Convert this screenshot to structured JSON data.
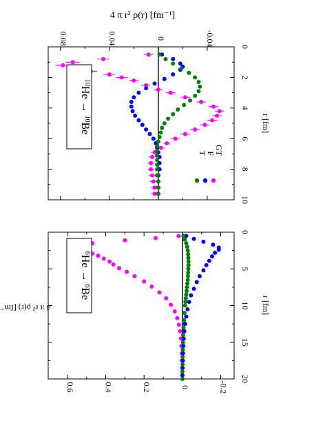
{
  "chart_data": [
    {
      "type": "scatter",
      "panel": "left",
      "orientation": "rotated-90-clockwise",
      "title": "",
      "xlabel": "r [fm]",
      "ylabel": "4 π r² ρ(r) [fm⁻¹]",
      "annotation": {
        "parent": "He",
        "parent_mass": "6",
        "arrow": "→",
        "daughter": "Be",
        "daughter_mass": "6"
      },
      "xlim": [
        0,
        20
      ],
      "ylim": [
        -0.27,
        0.7
      ],
      "x_ticks": [
        0,
        5,
        10,
        15,
        20
      ],
      "y_ticks": [
        -0.2,
        0,
        0.2,
        0.4,
        0.6
      ],
      "y_tick_labels": [
        "-0.2",
        "0",
        "0.2",
        "0.4",
        "0.6"
      ],
      "grid": false,
      "legend": "none",
      "zero_line": true,
      "series": [
        {
          "color": "#ff00ff",
          "symbol": "filled-circle",
          "x": [
            0.5,
            0.8,
            1.1,
            1.5,
            1.9,
            2.2,
            2.5,
            2.9,
            3.2,
            3.6,
            4.0,
            4.4,
            4.9,
            5.4,
            6.0,
            6.7,
            7.4,
            8.2,
            9.0,
            9.9,
            10.8,
            11.7,
            12.6,
            13.5,
            14.5,
            15.5,
            16.5,
            17.5,
            18.5,
            19.5
          ],
          "y": [
            0.02,
            0.14,
            0.3,
            0.47,
            0.57,
            0.56,
            0.52,
            0.47,
            0.44,
            0.41,
            0.38,
            0.36,
            0.33,
            0.29,
            0.25,
            0.2,
            0.16,
            0.12,
            0.085,
            0.06,
            0.04,
            0.027,
            0.018,
            0.012,
            0.008,
            0.005,
            0.003,
            0.002,
            0.001,
            0.0
          ]
        },
        {
          "color": "#0000ff",
          "symbol": "filled-circle",
          "x": [
            0.5,
            0.9,
            1.3,
            1.7,
            2.1,
            2.4,
            2.8,
            3.3,
            3.9,
            4.5,
            5.2,
            6.0,
            6.8,
            7.7,
            8.6,
            9.5,
            10.5,
            11.5,
            12.5,
            13.5,
            14.5,
            15.5,
            16.5,
            17.5,
            18.5,
            19.5
          ],
          "y": [
            -0.02,
            -0.06,
            -0.11,
            -0.16,
            -0.19,
            -0.19,
            -0.17,
            -0.155,
            -0.14,
            -0.125,
            -0.11,
            -0.09,
            -0.075,
            -0.06,
            -0.045,
            -0.035,
            -0.027,
            -0.02,
            -0.014,
            -0.01,
            -0.007,
            -0.005,
            -0.003,
            -0.002,
            -0.001,
            0.0
          ]
        },
        {
          "color": "#008000",
          "symbol": "filled-circle",
          "x": [
            0.5,
            1.0,
            1.5,
            2.0,
            2.5,
            3.0,
            3.5,
            4.0,
            4.5,
            5.0,
            5.5,
            6.0,
            6.5,
            7.0,
            7.5,
            8.0,
            8.5,
            9.0,
            9.5,
            10.0,
            11.0,
            12.0,
            13.0,
            14.0,
            15.0,
            16.0,
            17.0,
            18.0,
            19.0,
            20.0
          ],
          "y": [
            -0.005,
            -0.012,
            -0.02,
            -0.025,
            -0.028,
            -0.03,
            -0.031,
            -0.032,
            -0.032,
            -0.031,
            -0.03,
            -0.029,
            -0.028,
            -0.026,
            -0.024,
            -0.022,
            -0.02,
            -0.018,
            -0.016,
            -0.014,
            -0.011,
            -0.008,
            -0.006,
            -0.004,
            -0.003,
            -0.002,
            -0.001,
            -0.001,
            0.0,
            0.0
          ]
        }
      ]
    },
    {
      "type": "scatter",
      "panel": "right",
      "orientation": "rotated-90-clockwise",
      "title": "",
      "xlabel": "r [fm]",
      "ylabel": "4 π r² ρ(r) [fm⁻¹]",
      "annotation": {
        "parent": "He",
        "parent_mass": "10",
        "arrow": "→",
        "daughter": "Be",
        "daughter_mass": "10"
      },
      "xlim": [
        0,
        10
      ],
      "ylim": [
        -0.062,
        0.09
      ],
      "x_ticks": [
        0,
        2,
        4,
        6,
        8,
        10
      ],
      "y_ticks": [
        -0.04,
        0,
        0.04,
        0.08
      ],
      "y_tick_labels": [
        "-0.04",
        "0",
        "0.04",
        "0.08"
      ],
      "grid": false,
      "legend": {
        "position": "top-right",
        "labels": [
          "GT",
          "F",
          "T"
        ],
        "colors": [
          "#ff00ff",
          "#0000ff",
          "#008000"
        ]
      },
      "zero_line": true,
      "series": [
        {
          "name": "GT",
          "color": "#ff00ff",
          "symbol": "filled-circle-with-error-bars",
          "x": [
            0.5,
            0.8,
            1.0,
            1.2,
            1.4,
            1.6,
            1.8,
            2.0,
            2.2,
            2.5,
            2.8,
            3.0,
            3.3,
            3.6,
            3.9,
            4.2,
            4.5,
            4.8,
            5.1,
            5.4,
            5.7,
            6.0,
            6.3,
            6.6,
            6.9,
            7.2,
            7.6,
            8.0,
            8.4,
            8.8,
            9.2,
            9.6
          ],
          "y": [
            0.008,
            0.045,
            0.07,
            0.078,
            0.068,
            0.055,
            0.04,
            0.03,
            0.02,
            0.01,
            0.0,
            -0.01,
            -0.022,
            -0.035,
            -0.045,
            -0.05,
            -0.048,
            -0.044,
            -0.038,
            -0.03,
            -0.022,
            -0.014,
            -0.007,
            -0.002,
            0.003,
            0.005,
            0.006,
            0.006,
            0.005,
            0.004,
            0.003,
            0.003
          ],
          "error": [
            0.004,
            0.005,
            0.006,
            0.006,
            0.006,
            0.005,
            0.005,
            0.005,
            0.004,
            0.004,
            0.004,
            0.004,
            0.004,
            0.004,
            0.004,
            0.004,
            0.004,
            0.004,
            0.004,
            0.004,
            0.004,
            0.004,
            0.003,
            0.003,
            0.003,
            0.003,
            0.003,
            0.003,
            0.003,
            0.003,
            0.003,
            0.003
          ]
        },
        {
          "name": "F",
          "color": "#0000ff",
          "symbol": "filled-circle",
          "x": [
            0.5,
            0.8,
            1.1,
            1.3,
            1.5,
            1.8,
            2.1,
            2.4,
            2.7,
            3.0,
            3.3,
            3.6,
            3.9,
            4.2,
            4.5,
            4.8,
            5.1,
            5.4,
            5.7,
            6.0,
            6.3,
            6.6,
            6.9,
            7.2,
            7.6,
            8.0,
            8.4,
            8.8,
            9.2,
            9.6
          ],
          "y": [
            -0.003,
            -0.012,
            -0.018,
            -0.02,
            -0.018,
            -0.012,
            -0.005,
            0.003,
            0.01,
            0.016,
            0.02,
            0.022,
            0.022,
            0.021,
            0.019,
            0.016,
            0.013,
            0.01,
            0.007,
            0.004,
            0.002,
            0.001,
            0.0,
            -0.001,
            -0.001,
            -0.001,
            0.0,
            0.0,
            0.0,
            0.0
          ]
        },
        {
          "name": "T",
          "color": "#008000",
          "symbol": "filled-circle",
          "x": [
            0.5,
            0.8,
            1.1,
            1.4,
            1.7,
            2.0,
            2.3,
            2.6,
            2.9,
            3.2,
            3.5,
            3.8,
            4.1,
            4.4,
            4.7,
            5.0,
            5.3,
            5.6,
            5.9,
            6.2,
            6.5,
            6.8,
            7.1,
            7.4,
            7.7,
            8.0,
            8.4,
            8.8,
            9.2,
            9.6
          ],
          "y": [
            -0.001,
            -0.006,
            -0.012,
            -0.019,
            -0.025,
            -0.03,
            -0.033,
            -0.034,
            -0.033,
            -0.03,
            -0.026,
            -0.021,
            -0.016,
            -0.012,
            -0.008,
            -0.005,
            -0.003,
            -0.002,
            -0.001,
            0.0,
            0.001,
            0.001,
            0.001,
            0.001,
            0.001,
            0.001,
            0.001,
            0.0,
            0.0,
            0.0
          ]
        }
      ]
    }
  ]
}
